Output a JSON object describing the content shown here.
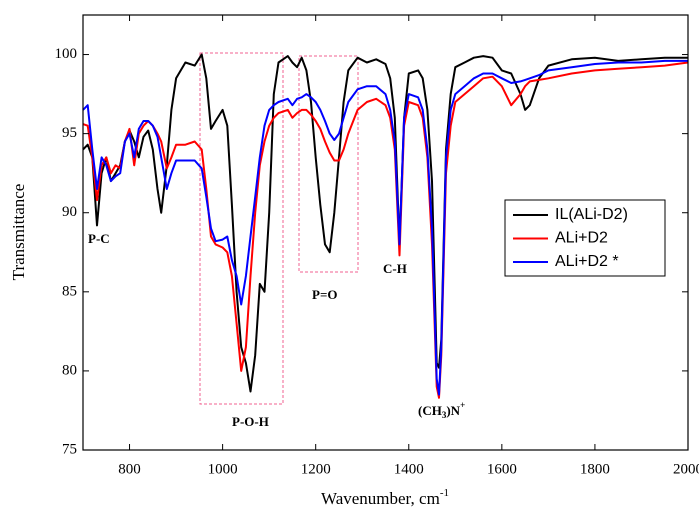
{
  "chart_data": {
    "type": "line",
    "y_label": "Transmittance",
    "x_label": {
      "text": "Wavenumber, cm",
      "sup": "-1"
    },
    "xlim": [
      700,
      2000
    ],
    "xticks": [
      800,
      1000,
      1200,
      1400,
      1600,
      1800,
      2000
    ],
    "ylim": [
      75,
      102.5
    ],
    "yticks": [
      75,
      80,
      85,
      90,
      95,
      100
    ],
    "annotations": [
      "P-C",
      "P-O-H",
      "P=O",
      "C-H"
    ],
    "annotation_ch3": {
      "parts": [
        "(CH",
        "3",
        ")N",
        "+"
      ]
    },
    "x": [
      700,
      710,
      720,
      730,
      740,
      750,
      760,
      770,
      780,
      790,
      800,
      810,
      820,
      830,
      840,
      850,
      860,
      868,
      880,
      890,
      900,
      920,
      940,
      955,
      965,
      975,
      985,
      1000,
      1010,
      1020,
      1030,
      1040,
      1050,
      1060,
      1070,
      1080,
      1090,
      1100,
      1110,
      1120,
      1140,
      1150,
      1160,
      1170,
      1180,
      1190,
      1200,
      1210,
      1220,
      1230,
      1240,
      1250,
      1260,
      1270,
      1290,
      1310,
      1330,
      1350,
      1360,
      1370,
      1380,
      1390,
      1400,
      1420,
      1430,
      1440,
      1450,
      1460,
      1465,
      1470,
      1480,
      1490,
      1500,
      1520,
      1540,
      1560,
      1580,
      1600,
      1620,
      1640,
      1650,
      1660,
      1680,
      1700,
      1750,
      1800,
      1850,
      1900,
      1950,
      2000
    ],
    "series": [
      {
        "name": "IL(ALi-D2)",
        "color": "#000000",
        "values": [
          94.0,
          94.3,
          93.5,
          89.2,
          92.5,
          93.5,
          92.0,
          92.5,
          93.0,
          94.5,
          95.2,
          94.5,
          93.5,
          94.8,
          95.2,
          94.0,
          91.5,
          90.0,
          93.0,
          96.5,
          98.5,
          99.5,
          99.3,
          100.0,
          98.5,
          95.3,
          95.8,
          96.5,
          95.5,
          90.5,
          85.0,
          81.5,
          80.5,
          78.7,
          81.0,
          85.5,
          85.0,
          90.0,
          97.5,
          99.5,
          99.9,
          99.5,
          99.2,
          99.8,
          99.0,
          97.0,
          93.5,
          90.5,
          88.0,
          87.5,
          90.0,
          93.5,
          97.0,
          99.0,
          99.8,
          99.5,
          99.7,
          99.4,
          98.5,
          96.0,
          88.0,
          96.0,
          98.8,
          99.0,
          98.5,
          96.5,
          92.0,
          80.5,
          80.2,
          82.0,
          94.0,
          97.5,
          99.2,
          99.5,
          99.8,
          99.9,
          99.8,
          99.0,
          98.8,
          97.5,
          96.5,
          96.8,
          98.5,
          99.3,
          99.7,
          99.8,
          99.6,
          99.7,
          99.8,
          99.8
        ]
      },
      {
        "name": "ALi+D2",
        "color": "#ff0000",
        "values": [
          95.6,
          95.5,
          93.5,
          90.8,
          93.0,
          93.5,
          92.5,
          93.0,
          92.8,
          94.5,
          95.3,
          93.0,
          95.0,
          95.5,
          95.8,
          95.5,
          95.0,
          94.5,
          92.8,
          93.5,
          94.3,
          94.3,
          94.5,
          94.0,
          91.5,
          88.5,
          88.0,
          87.8,
          87.5,
          86.0,
          83.0,
          80.0,
          81.5,
          86.0,
          90.0,
          93.0,
          94.5,
          95.5,
          96.0,
          96.3,
          96.5,
          96.0,
          96.3,
          96.5,
          96.5,
          96.2,
          95.8,
          95.3,
          94.5,
          93.8,
          93.3,
          93.3,
          94.0,
          95.0,
          96.5,
          97.0,
          97.2,
          96.8,
          96.0,
          94.0,
          87.3,
          95.5,
          97.0,
          96.8,
          96.0,
          93.5,
          88.0,
          79.0,
          78.3,
          81.0,
          92.5,
          95.5,
          97.0,
          97.5,
          98.0,
          98.5,
          98.6,
          98.0,
          96.8,
          97.5,
          98.0,
          98.3,
          98.4,
          98.5,
          98.8,
          99.0,
          99.1,
          99.2,
          99.3,
          99.5
        ]
      },
      {
        "name": "ALi+D2 *",
        "color": "#0000ff",
        "values": [
          96.5,
          96.8,
          94.0,
          91.5,
          93.5,
          93.0,
          92.0,
          92.3,
          92.5,
          94.5,
          95.0,
          93.5,
          95.3,
          95.8,
          95.8,
          95.5,
          94.8,
          93.5,
          91.5,
          92.5,
          93.3,
          93.3,
          93.3,
          92.8,
          91.0,
          89.0,
          88.2,
          88.3,
          88.5,
          87.0,
          86.0,
          84.2,
          86.0,
          88.5,
          91.0,
          93.5,
          95.5,
          96.5,
          96.8,
          97.0,
          97.2,
          96.8,
          97.2,
          97.3,
          97.5,
          97.3,
          97.0,
          96.5,
          95.8,
          95.0,
          94.6,
          95.0,
          96.0,
          97.0,
          97.8,
          98.0,
          98.0,
          97.5,
          96.5,
          94.5,
          88.0,
          96.0,
          97.5,
          97.3,
          96.5,
          94.0,
          89.0,
          79.5,
          78.5,
          81.5,
          93.5,
          96.5,
          97.5,
          98.0,
          98.5,
          98.8,
          98.8,
          98.5,
          98.2,
          98.3,
          98.4,
          98.5,
          98.7,
          99.0,
          99.2,
          99.4,
          99.5,
          99.5,
          99.6,
          99.6
        ]
      }
    ]
  }
}
